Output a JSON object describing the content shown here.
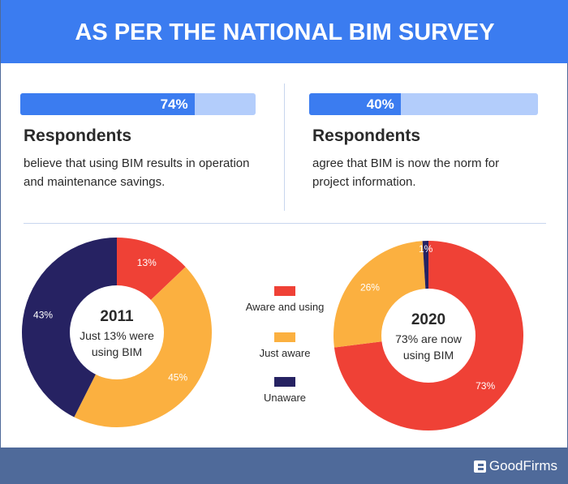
{
  "header": {
    "title": "AS PER THE NATIONAL BIM SURVEY"
  },
  "stats": [
    {
      "percent": 74,
      "label": "74%",
      "title": "Respondents",
      "text": "believe that using BIM results in operation and maintenance savings."
    },
    {
      "percent": 40,
      "label": "40%",
      "title": "Respondents",
      "text": "agree that BIM is now the norm for project information."
    }
  ],
  "colors": {
    "accent": "#3b7cf0",
    "aware_and_using": "#ef4136",
    "just_aware": "#fbb040",
    "unaware": "#262262",
    "footer": "#4f6a9a"
  },
  "legend": [
    "Aware and using",
    "Just aware",
    "Unaware"
  ],
  "chart_data": [
    {
      "type": "pie",
      "donut": true,
      "center_title": "2011",
      "center_text": [
        "Just 13% were",
        "using BIM"
      ],
      "categories": [
        "Aware and using",
        "Just aware",
        "Unaware"
      ],
      "values": [
        13,
        45,
        43
      ],
      "labels": [
        "13%",
        "45%",
        "43%"
      ]
    },
    {
      "type": "pie",
      "donut": true,
      "center_title": "2020",
      "center_text": [
        "73% are now",
        "using BIM"
      ],
      "categories": [
        "Aware and using",
        "Just aware",
        "Unaware"
      ],
      "values": [
        73,
        26,
        1
      ],
      "labels": [
        "73%",
        "26%",
        "1%"
      ]
    }
  ],
  "footer": {
    "brand": "GoodFirms"
  }
}
